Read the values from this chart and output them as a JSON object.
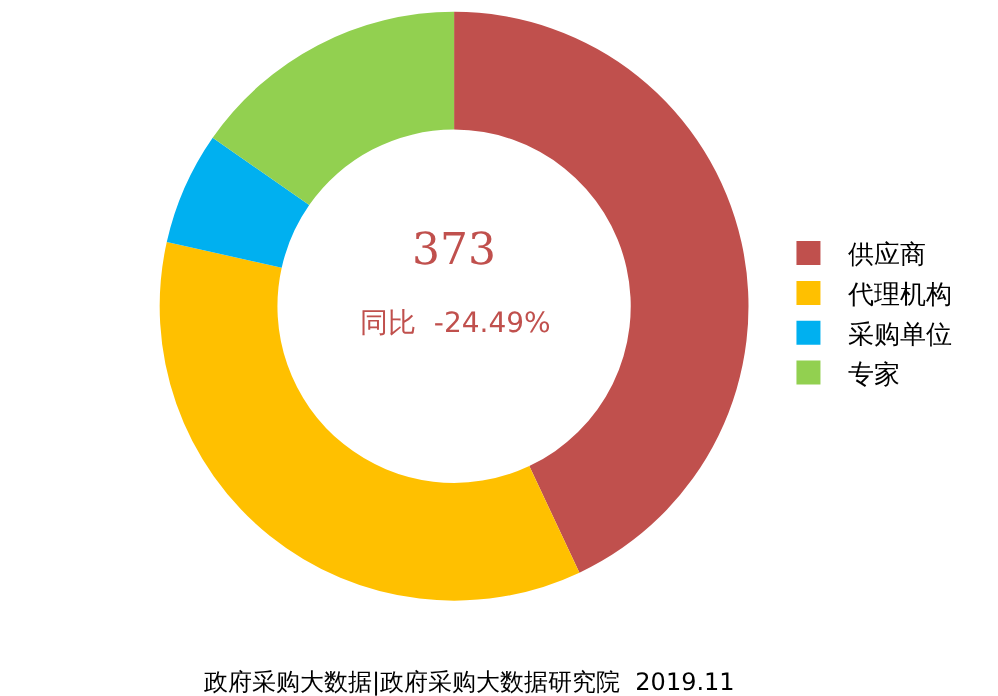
{
  "chart_data": {
    "type": "donut",
    "categories": [
      "供应商",
      "代理机构",
      "采购单位",
      "专家"
    ],
    "values": [
      43,
      35.5,
      6.2,
      15.3
    ],
    "colors": [
      "#c0504d",
      "#ffc000",
      "#00b0f0",
      "#92d050"
    ],
    "annotations": [
      "373",
      "同比  -24.49%",
      "政府采购大数据|政府采购大数据研究院  2019.11"
    ],
    "legend": "right"
  }
}
